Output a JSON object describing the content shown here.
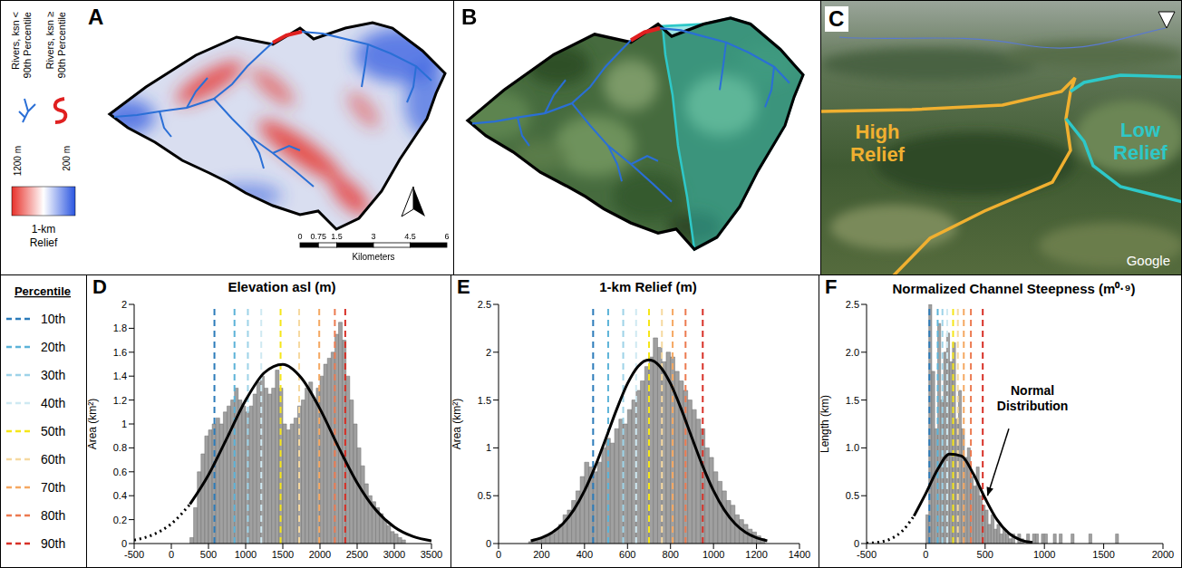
{
  "panels": {
    "A": {
      "letter": "A",
      "legend_items": [
        {
          "label": "Rivers, ksn < 90th Percentile",
          "color": "#2a6fd6"
        },
        {
          "label": "Rivers, ksn ≥ 90th Percentile",
          "color": "#e02020"
        }
      ],
      "colorbar": {
        "title": "1-km Relief",
        "max_label": "1200 m",
        "min_label": "200 m",
        "colors": [
          "#e8312a",
          "#ffffff",
          "#2a55e0"
        ]
      },
      "scale_bar": {
        "labels": [
          "0",
          "0.75",
          "1.5",
          "3",
          "4.5",
          "6"
        ],
        "unit": "Kilometers"
      }
    },
    "B": {
      "letter": "B"
    },
    "C": {
      "letter": "C",
      "labels": [
        {
          "text": "High Relief",
          "color": "#f0b030"
        },
        {
          "text": "Low Relief",
          "color": "#2ec8c8"
        }
      ],
      "watermark": "Google"
    }
  },
  "percentile_legend": {
    "title": "Percentile",
    "names": [
      "10th",
      "20th",
      "30th",
      "40th",
      "50th",
      "60th",
      "70th",
      "80th",
      "90th"
    ],
    "colors": [
      "#2b7bba",
      "#5cb3d8",
      "#9ed3e8",
      "#cfe9f2",
      "#f5e619",
      "#f6d9a0",
      "#f5a862",
      "#ec7a50",
      "#d73027"
    ]
  },
  "chart_data": [
    {
      "letter": "D",
      "type": "histogram",
      "title": "Elevation asl (m)",
      "y_label": "Area (km²)",
      "color": "#a0a0a0",
      "bins": [
        250,
        300,
        350,
        400,
        450,
        500,
        550,
        600,
        650,
        700,
        750,
        800,
        850,
        900,
        950,
        1000,
        1050,
        1100,
        1150,
        1200,
        1250,
        1300,
        1350,
        1400,
        1450,
        1500,
        1550,
        1600,
        1650,
        1700,
        1750,
        1800,
        1850,
        1900,
        1950,
        2000,
        2050,
        2100,
        2150,
        2200,
        2250,
        2300,
        2350,
        2400,
        2450,
        2500,
        2550,
        2600,
        2650,
        2700,
        2750,
        2800,
        2850,
        2900,
        2950,
        3000,
        3050,
        3100,
        3150
      ],
      "values": [
        0.05,
        0.3,
        0.6,
        0.75,
        0.9,
        0.95,
        1,
        1.05,
        1,
        1.1,
        1.15,
        1.2,
        1.3,
        1.2,
        1.15,
        1.1,
        1.15,
        1.25,
        1.35,
        1.4,
        1.3,
        1.25,
        1.3,
        1.45,
        1.3,
        1,
        0.95,
        1,
        1.05,
        1.15,
        1.2,
        1.3,
        1.35,
        1.2,
        1.3,
        1.4,
        1.5,
        1.55,
        1.6,
        1.75,
        1.85,
        1.7,
        1.4,
        1.2,
        1,
        0.8,
        0.65,
        0.5,
        0.4,
        0.35,
        0.3,
        0.25,
        0.2,
        0.15,
        0.1,
        0.08,
        0.05,
        0.03
      ],
      "percentiles": [
        580,
        850,
        1030,
        1210,
        1470,
        1720,
        1990,
        2200,
        2340
      ],
      "series": [
        {
          "type": "line",
          "line_style": "dotted",
          "color": "#000000",
          "x": [
            -500,
            -250,
            0,
            250
          ],
          "values": [
            0.029,
            0.073,
            0.165,
            0.328
          ]
        },
        {
          "type": "line",
          "line_style": "solid",
          "color": "#000000",
          "x": [
            250,
            500,
            750,
            1000,
            1250,
            1500,
            1750,
            2000,
            2250,
            2500,
            2750,
            3000,
            3250,
            3500
          ],
          "values": [
            0.328,
            0.574,
            0.884,
            1.198,
            1.428,
            1.499,
            1.385,
            1.126,
            0.806,
            0.508,
            0.282,
            0.138,
            0.059,
            0.022
          ]
        }
      ],
      "xlim": [
        -500,
        3500
      ],
      "xticks": [
        -500,
        0,
        500,
        1000,
        1500,
        2000,
        2500,
        3000,
        3500
      ],
      "ylim": [
        0,
        2
      ],
      "yticks": [
        0,
        0.2,
        0.4,
        0.6,
        0.8,
        1,
        1.2,
        1.4,
        1.6,
        1.8,
        2
      ]
    },
    {
      "letter": "E",
      "type": "histogram",
      "title": "1-km Relief (m)",
      "y_label": "Area (km²)",
      "color": "#a0a0a0",
      "bins": [
        140,
        160,
        180,
        200,
        220,
        240,
        260,
        280,
        300,
        320,
        340,
        360,
        380,
        400,
        420,
        440,
        460,
        480,
        500,
        520,
        540,
        560,
        580,
        600,
        620,
        640,
        660,
        680,
        700,
        720,
        740,
        760,
        780,
        800,
        820,
        840,
        860,
        880,
        900,
        920,
        940,
        960,
        980,
        1000,
        1020,
        1040,
        1060,
        1080,
        1100,
        1120,
        1140,
        1160,
        1180,
        1200,
        1220,
        1240
      ],
      "values": [
        0.02,
        0.03,
        0.05,
        0.06,
        0.08,
        0.1,
        0.15,
        0.2,
        0.3,
        0.35,
        0.45,
        0.55,
        0.7,
        0.85,
        0.8,
        0.75,
        0.85,
        1,
        1.1,
        1.05,
        1.2,
        1.3,
        1.25,
        1.4,
        1.5,
        1.6,
        1.7,
        1.85,
        1.95,
        2.15,
        2.05,
        1.9,
        2,
        1.95,
        1.8,
        1.7,
        1.6,
        1.5,
        1.4,
        1.3,
        1.2,
        1,
        0.9,
        0.75,
        0.65,
        0.55,
        0.45,
        0.4,
        0.3,
        0.25,
        0.2,
        0.15,
        0.12,
        0.08,
        0.05
      ],
      "percentiles": [
        440,
        510,
        580,
        640,
        700,
        760,
        810,
        870,
        950
      ],
      "series": [
        {
          "type": "line",
          "line_style": "solid",
          "color": "#000000",
          "x": [
            150,
            200,
            250,
            300,
            350,
            400,
            450,
            500,
            550,
            600,
            650,
            700,
            750,
            800,
            850,
            900,
            950,
            1000,
            1050,
            1100,
            1150,
            1200,
            1250
          ],
          "values": [
            0.029,
            0.06,
            0.116,
            0.209,
            0.352,
            0.552,
            0.808,
            1.103,
            1.405,
            1.672,
            1.854,
            1.92,
            1.854,
            1.672,
            1.405,
            1.103,
            0.808,
            0.552,
            0.352,
            0.209,
            0.116,
            0.06,
            0.029
          ]
        }
      ],
      "xlim": [
        0,
        1400
      ],
      "xticks": [
        0,
        200,
        400,
        600,
        800,
        1000,
        1200,
        1400
      ],
      "ylim": [
        0,
        2.5
      ],
      "yticks": [
        0,
        0.5,
        1,
        1.5,
        2,
        2.5
      ]
    },
    {
      "letter": "F",
      "type": "histogram",
      "title": "Normalized Channel Steepness (m⁰·⁹)",
      "y_label": "Length (km)",
      "color": "#a0a0a0",
      "bins": [
        0,
        25,
        50,
        75,
        100,
        125,
        150,
        175,
        200,
        225,
        250,
        275,
        300,
        325,
        350,
        375,
        400,
        425,
        450,
        475,
        500,
        525,
        550,
        575,
        600,
        625,
        650,
        675,
        700,
        725,
        750,
        775,
        800,
        825,
        850,
        875,
        900,
        925,
        950,
        975,
        1000,
        1025,
        1050,
        1075,
        1100,
        1125,
        1150,
        1175,
        1200,
        1225,
        1250,
        1275,
        1300,
        1325,
        1350,
        1375,
        1400,
        1425,
        1450,
        1475,
        1500,
        1525,
        1550,
        1575,
        1600,
        1625,
        1650
      ],
      "values": [
        0.3,
        2.5,
        1.8,
        1.2,
        2.3,
        1.5,
        2,
        2.2,
        1.9,
        2.1,
        1.3,
        1.6,
        1.2,
        0.9,
        1,
        0.7,
        0.6,
        0.8,
        0.5,
        0.4,
        0.35,
        0.2,
        0.3,
        0.15,
        0.2,
        0.1,
        0.15,
        0.1,
        0.05,
        0.1,
        0,
        0.1,
        0.05,
        0,
        0.1,
        0,
        0.1,
        0.1,
        0,
        0.1,
        0.1,
        0,
        0,
        0.1,
        0,
        0.1,
        0,
        0,
        0,
        0.1,
        0,
        0,
        0,
        0,
        0,
        0.1,
        0,
        0,
        0,
        0,
        0,
        0,
        0,
        0,
        0.1,
        0
      ],
      "percentiles": [
        30,
        100,
        140,
        180,
        230,
        270,
        320,
        380,
        480
      ],
      "series": [
        {
          "type": "line",
          "line_style": "dotted",
          "color": "#000000",
          "x": [
            -500,
            -400,
            -300,
            -200,
            -100
          ],
          "values": [
            0.003,
            0.014,
            0.047,
            0.129,
            0.288
          ]
        },
        {
          "type": "line",
          "line_style": "solid",
          "color": "#000000",
          "x": [
            -100,
            0,
            100,
            200,
            300,
            400,
            500,
            600,
            700,
            800,
            900
          ],
          "values": [
            0.288,
            0.524,
            0.776,
            0.934,
            0.915,
            0.729,
            0.473,
            0.249,
            0.107,
            0.037,
            0.011
          ]
        }
      ],
      "annotation": {
        "text": "Normal Distribution",
        "x": 900,
        "y": 1.55,
        "arrow_from": [
          700,
          1.2
        ],
        "arrow_to": [
          520,
          0.5
        ]
      },
      "xlim": [
        -500,
        2000
      ],
      "xticks": [
        -500,
        0,
        500,
        1000,
        1500,
        2000
      ],
      "ylim": [
        0,
        2.5
      ],
      "yticks": [
        0,
        0.5,
        {
          "value": 1,
          "label": "1.0"
        },
        1.5,
        {
          "value": 2,
          "label": "2.0"
        },
        2.5
      ]
    }
  ]
}
